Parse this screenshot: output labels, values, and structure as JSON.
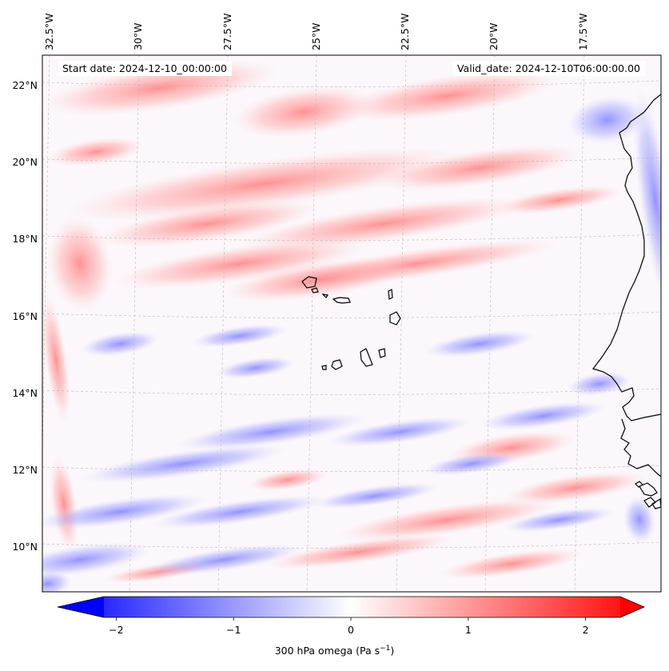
{
  "map": {
    "start_date_text": "Start date: 2024-12-10_00:00:00",
    "valid_date_text": "Valid_date: 2024-12-10T06:00:00.00",
    "lon_labels": [
      "32.5°W",
      "30°W",
      "27.5°W",
      "25°W",
      "22.5°W",
      "20°W",
      "17.5°W"
    ],
    "lat_labels": [
      "22°N",
      "20°N",
      "18°N",
      "16°N",
      "14°N",
      "12°N",
      "10°N"
    ],
    "field_colors": {
      "negative": "#0000ff",
      "zero": "#ffffff",
      "positive": "#ff0000"
    },
    "coastline_color": "#000000"
  },
  "colorbar": {
    "label_prefix": "300 hPa omega (Pa s",
    "label_exponent": "−1",
    "label_suffix": ")",
    "ticks": [
      {
        "value": -2,
        "text": "−2"
      },
      {
        "value": -1,
        "text": "−1"
      },
      {
        "value": 0,
        "text": "0"
      },
      {
        "value": 1,
        "text": "1"
      },
      {
        "value": 2,
        "text": "2"
      }
    ],
    "range": [
      -2.5,
      2.5
    ],
    "extend": "both"
  }
}
